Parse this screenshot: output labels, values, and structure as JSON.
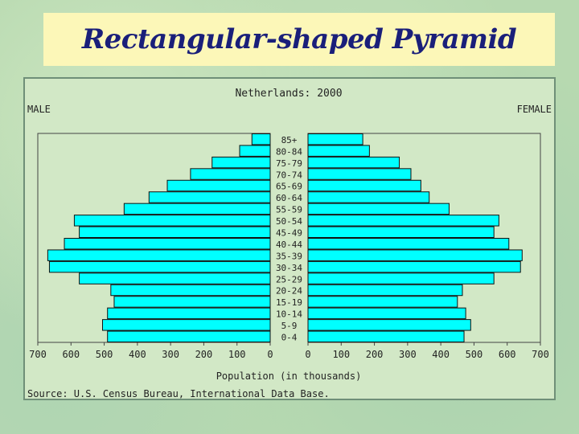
{
  "slide_title": "Rectangular-shaped Pyramid",
  "chart_data": {
    "type": "bar",
    "title": "Netherlands: 2000",
    "left_label": "MALE",
    "right_label": "FEMALE",
    "xlabel": "Population (in thousands)",
    "source": "Source: U.S. Census Bureau, International Data Base.",
    "xlim": [
      0,
      700
    ],
    "x_ticks_left": [
      700,
      600,
      500,
      400,
      300,
      200,
      100,
      0
    ],
    "x_ticks_right": [
      0,
      100,
      200,
      300,
      400,
      500,
      600,
      700
    ],
    "bar_color": "#00ffff",
    "categories": [
      "85+",
      "80-84",
      "75-79",
      "70-74",
      "65-69",
      "60-64",
      "55-59",
      "50-54",
      "45-49",
      "40-44",
      "35-39",
      "30-34",
      "25-29",
      "20-24",
      "15-19",
      "10-14",
      "5-9",
      "0-4"
    ],
    "series": [
      {
        "name": "MALE",
        "values": [
          55,
          92,
          175,
          240,
          310,
          365,
          440,
          590,
          575,
          620,
          670,
          665,
          575,
          480,
          470,
          490,
          505,
          490
        ]
      },
      {
        "name": "FEMALE",
        "values": [
          165,
          185,
          275,
          310,
          340,
          365,
          425,
          575,
          560,
          605,
          645,
          640,
          560,
          465,
          450,
          475,
          490,
          470
        ]
      }
    ]
  }
}
